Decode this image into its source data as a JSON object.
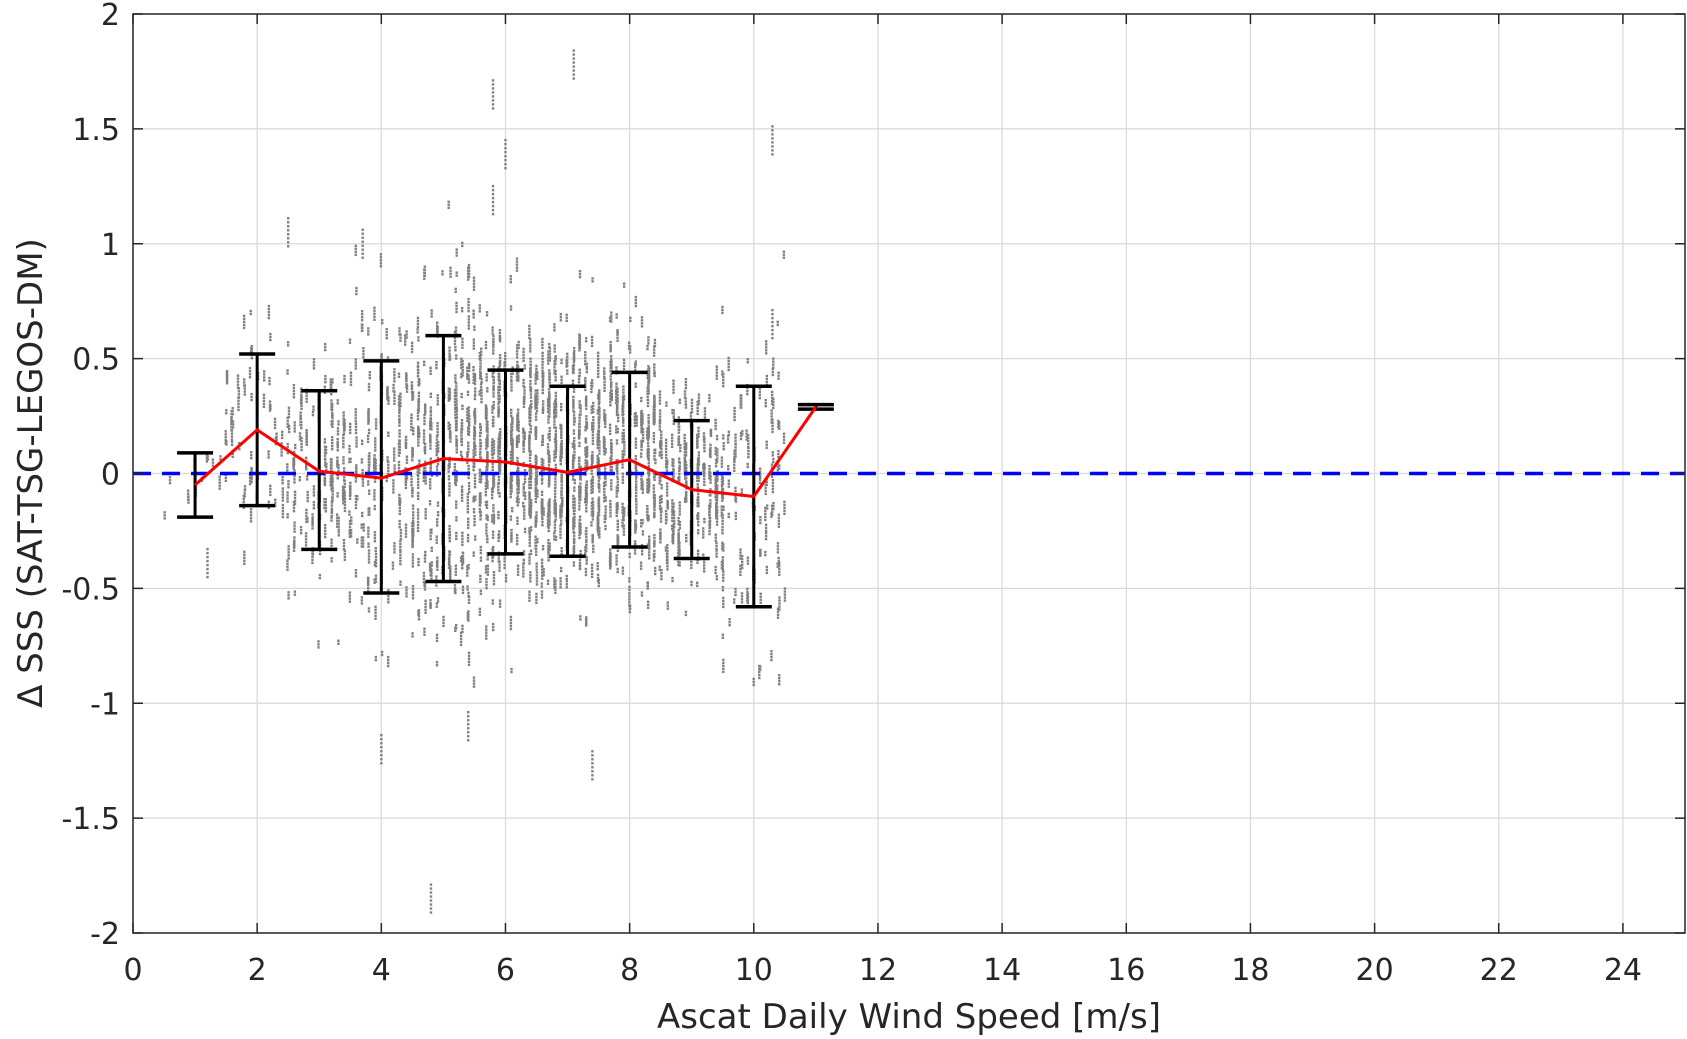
{
  "chart_data": {
    "type": "scatter",
    "xlabel": "Ascat Daily Wind Speed [m/s]",
    "ylabel": "Δ SSS (SAT-TSG-LEGOS-DM)",
    "xlim": [
      0,
      25
    ],
    "ylim": [
      -2,
      2
    ],
    "xticks": [
      0,
      2,
      4,
      6,
      8,
      10,
      12,
      14,
      16,
      18,
      20,
      22,
      24
    ],
    "yticks": [
      -2,
      -1.5,
      -1,
      -0.5,
      0,
      0.5,
      1,
      1.5,
      2
    ],
    "xtick_labels": [
      "0",
      "2",
      "4",
      "6",
      "8",
      "10",
      "12",
      "14",
      "16",
      "18",
      "20",
      "22",
      "24"
    ],
    "ytick_labels": [
      "-2",
      "-1.5",
      "-1",
      "-0.5",
      "0",
      "0.5",
      "1",
      "1.5",
      "2"
    ],
    "grid": true,
    "reference_line": {
      "y": 0,
      "color": "#0000ff",
      "style": "dashed"
    },
    "mean_line": {
      "color": "#ff0000",
      "x": [
        1,
        2,
        3,
        4,
        5,
        6,
        7,
        8,
        9,
        10,
        11
      ],
      "y": [
        -0.05,
        0.19,
        0.01,
        -0.02,
        0.065,
        0.05,
        0.005,
        0.06,
        -0.07,
        -0.1,
        0.29
      ]
    },
    "error_bars": {
      "color": "#000000",
      "x": [
        1,
        2,
        3,
        4,
        5,
        6,
        7,
        8,
        9,
        10,
        11
      ],
      "low": [
        -0.19,
        -0.14,
        -0.33,
        -0.52,
        -0.47,
        -0.35,
        -0.36,
        -0.32,
        -0.37,
        -0.58,
        0.28
      ],
      "high": [
        0.09,
        0.52,
        0.36,
        0.49,
        0.6,
        0.45,
        0.38,
        0.44,
        0.23,
        0.38,
        0.3
      ]
    },
    "scatter_color": "#808080",
    "scatter_clusters": [
      {
        "x": 1.2,
        "y": -0.39
      },
      {
        "x": 2.5,
        "y": 1.05
      },
      {
        "x": 3.7,
        "y": 1.0
      },
      {
        "x": 4.8,
        "y": -1.85
      },
      {
        "x": 5.8,
        "y": 1.65
      },
      {
        "x": 5.8,
        "y": 1.19
      },
      {
        "x": 6.0,
        "y": 1.39
      },
      {
        "x": 7.1,
        "y": 1.78
      },
      {
        "x": 7.4,
        "y": -1.27
      },
      {
        "x": 10.3,
        "y": 1.45
      },
      {
        "x": 10.3,
        "y": 0.65
      },
      {
        "x": 4.0,
        "y": -1.2
      },
      {
        "x": 5.4,
        "y": -1.1
      }
    ]
  }
}
